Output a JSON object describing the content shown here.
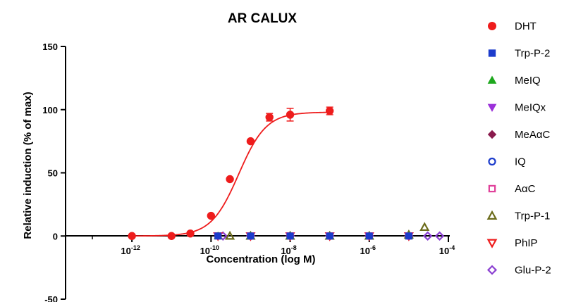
{
  "chart_data": {
    "type": "scatter",
    "title": "AR CALUX",
    "xlabel": "Concentration (log M)",
    "ylabel": "Relative induction (% of max)",
    "xscale": "log",
    "xlim": [
      1e-13,
      0.0001
    ],
    "ylim": [
      -50,
      150
    ],
    "x_ticks": [
      {
        "base": "10",
        "exp": "-12",
        "value": 1e-12
      },
      {
        "base": "10",
        "exp": "-10",
        "value": 1e-10
      },
      {
        "base": "10",
        "exp": "-8",
        "value": 1e-08
      },
      {
        "base": "10",
        "exp": "-6",
        "value": 1e-06
      },
      {
        "base": "10",
        "exp": "-4",
        "value": 0.0001
      }
    ],
    "y_ticks": [
      "150",
      "100",
      "50",
      "0",
      "-50"
    ],
    "legend_position": "right",
    "series": [
      {
        "name": "DHT",
        "marker": "circle-filled",
        "color": "#ee1c1c",
        "x": [
          1e-12,
          1e-11,
          3e-11,
          1e-10,
          3e-10,
          1e-09,
          3e-09,
          1e-08,
          1e-07
        ],
        "y": [
          0,
          0,
          2,
          16,
          45,
          75,
          94,
          96,
          99
        ],
        "err": [
          0,
          0,
          0,
          0,
          0,
          0,
          3,
          5,
          3
        ],
        "fit": {
          "bottom": 0,
          "top": 98,
          "log_ec50": -9.3,
          "hill": 1.25
        }
      },
      {
        "name": "Trp-P-2",
        "marker": "square-filled",
        "color": "#1c3ccc",
        "x": [
          1.5e-10,
          1e-09,
          1e-08,
          1e-07,
          1e-06,
          1e-05
        ],
        "y": [
          0,
          0,
          0,
          0,
          0,
          0
        ]
      },
      {
        "name": "MeIQ",
        "marker": "triangle-up-filled",
        "color": "#1ea81e",
        "x": [
          1.5e-10,
          1e-09,
          1e-08,
          1e-07,
          1e-06,
          1e-05
        ],
        "y": [
          0,
          0,
          0,
          0,
          0,
          0
        ]
      },
      {
        "name": "MeIQx",
        "marker": "triangle-down-filled",
        "color": "#9b30d9",
        "x": [
          1.5e-10,
          1e-09,
          1e-08,
          1e-07,
          1e-06,
          1e-05
        ],
        "y": [
          0,
          0,
          0,
          0,
          0,
          0
        ]
      },
      {
        "name": "MeAαC",
        "marker": "diamond-filled",
        "color": "#8a1b4d",
        "x": [
          1.5e-10,
          1e-09,
          1e-08,
          1e-07,
          1e-06,
          1e-05
        ],
        "y": [
          0,
          0,
          0,
          0,
          0,
          0
        ]
      },
      {
        "name": "IQ",
        "marker": "circle-open",
        "color": "#1c3ccc",
        "x": [
          1.5e-10,
          1e-09,
          1e-08,
          1e-07,
          1e-06,
          1e-05
        ],
        "y": [
          0,
          0,
          0,
          0,
          0,
          0
        ]
      },
      {
        "name": "AαC",
        "marker": "square-open",
        "color": "#e0409a",
        "x": [
          1.5e-10,
          1e-09,
          1e-08,
          1e-07,
          1e-06,
          1e-05
        ],
        "y": [
          0,
          0,
          0,
          0,
          0,
          0
        ]
      },
      {
        "name": "Trp-P-1",
        "marker": "triangle-up-open",
        "color": "#6b6b1a",
        "x": [
          3e-10,
          1e-09,
          1e-08,
          1e-07,
          1e-06,
          1e-05,
          2.5e-05
        ],
        "y": [
          0,
          0,
          0,
          0,
          0,
          1,
          7
        ]
      },
      {
        "name": "PhIP",
        "marker": "triangle-down-open",
        "color": "#ee1c1c",
        "x": [
          1.5e-10,
          1e-09,
          1e-08,
          1e-07,
          1e-06,
          1e-05
        ],
        "y": [
          0,
          0,
          0,
          0,
          0,
          0
        ]
      },
      {
        "name": "Glu-P-2",
        "marker": "diamond-open",
        "color": "#8a3fd1",
        "x": [
          2e-10,
          1e-09,
          1e-08,
          1e-07,
          1e-06,
          1e-05,
          3e-05,
          6e-05
        ],
        "y": [
          0,
          0,
          0,
          0,
          0,
          0,
          0,
          0
        ]
      }
    ]
  }
}
